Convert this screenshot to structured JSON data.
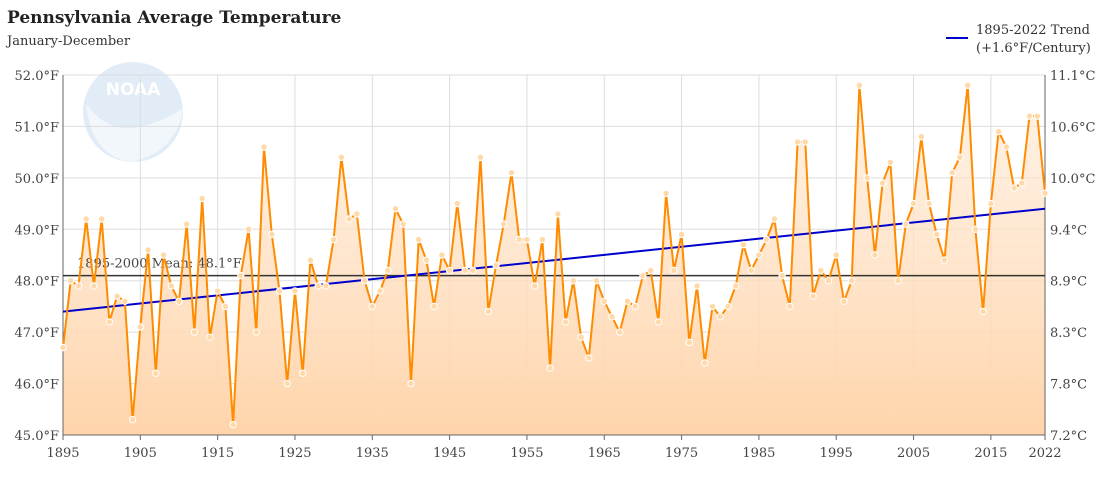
{
  "header": {
    "title": "Pennsylvania Average Temperature",
    "subtitle": "January-December"
  },
  "legend": {
    "line1": "1895-2022 Trend",
    "line2": "(+1.6°F/Century)",
    "color": "#0000cc"
  },
  "mean_label": "1895-2000 Mean: 48.1°F",
  "watermark": "NOAA",
  "colors": {
    "series": "#ff8c00",
    "fill_top": "#ffe8d2",
    "fill_bottom": "#ffd4aa",
    "trend": "#0000cc",
    "mean": "#333333",
    "grid": "#dddddd"
  },
  "chart_data": {
    "type": "line",
    "title": "Pennsylvania Average Temperature",
    "subtitle": "January-December",
    "xlim": [
      1895,
      2022
    ],
    "ylim": [
      45.0,
      52.0
    ],
    "y_ticks": [
      "45.0°F",
      "46.0°F",
      "47.0°F",
      "48.0°F",
      "49.0°F",
      "50.0°F",
      "51.0°F",
      "52.0°F"
    ],
    "y_tick_values": [
      45,
      46,
      47,
      48,
      49,
      50,
      51,
      52
    ],
    "y2_ticks": [
      "7.2°C",
      "7.8°C",
      "8.3°C",
      "8.9°C",
      "9.4°C",
      "10.0°C",
      "10.6°C",
      "11.1°C"
    ],
    "x_ticks": [
      "1895",
      "1905",
      "1915",
      "1925",
      "1935",
      "1945",
      "1955",
      "1965",
      "1975",
      "1985",
      "1995",
      "2005",
      "2015",
      "2022"
    ],
    "x_tick_values": [
      1895,
      1905,
      1915,
      1925,
      1935,
      1945,
      1955,
      1965,
      1975,
      1985,
      1995,
      2005,
      2015,
      2022
    ],
    "grid": true,
    "legend_position": "top-right",
    "mean": 48.1,
    "trend": {
      "start": [
        1895,
        47.4
      ],
      "end": [
        2022,
        49.4
      ]
    },
    "series": [
      {
        "years": [
          1895,
          1896,
          1897,
          1898,
          1899,
          1900,
          1901,
          1902,
          1903,
          1904,
          1905,
          1906,
          1907,
          1908,
          1909,
          1910,
          1911,
          1912,
          1913,
          1914,
          1915,
          1916,
          1917,
          1918,
          1919,
          1920,
          1921,
          1922,
          1923,
          1924,
          1925,
          1926,
          1927,
          1928,
          1929,
          1930,
          1931,
          1932,
          1933,
          1934,
          1935,
          1936,
          1937,
          1938,
          1939,
          1940,
          1941,
          1942,
          1943,
          1944,
          1945,
          1946,
          1947,
          1948,
          1949,
          1950,
          1951,
          1952,
          1953,
          1954,
          1955,
          1956,
          1957,
          1958,
          1959,
          1960,
          1961,
          1962,
          1963,
          1964,
          1965,
          1966,
          1967,
          1968,
          1969,
          1970,
          1971,
          1972,
          1973,
          1974,
          1975,
          1976,
          1977,
          1978,
          1979,
          1980,
          1981,
          1982,
          1983,
          1984,
          1985,
          1986,
          1987,
          1988,
          1989,
          1990,
          1991,
          1992,
          1993,
          1994,
          1995,
          1996,
          1997,
          1998,
          1999,
          2000,
          2001,
          2002,
          2003,
          2004,
          2005,
          2006,
          2007,
          2008,
          2009,
          2010,
          2011,
          2012,
          2013,
          2014,
          2015,
          2016,
          2017,
          2018,
          2019,
          2020,
          2021,
          2022
        ],
        "values": [
          46.7,
          48.0,
          47.9,
          49.2,
          47.9,
          49.2,
          47.2,
          47.7,
          47.6,
          45.3,
          47.1,
          48.6,
          46.2,
          48.5,
          47.9,
          47.6,
          49.1,
          47.0,
          49.6,
          46.9,
          47.8,
          47.5,
          45.2,
          48.1,
          49.0,
          47.0,
          50.6,
          48.9,
          47.8,
          46.0,
          47.8,
          46.2,
          48.4,
          47.9,
          47.9,
          48.8,
          50.4,
          49.2,
          49.3,
          48.0,
          47.5,
          47.8,
          48.2,
          49.4,
          49.1,
          46.0,
          48.8,
          48.4,
          47.5,
          48.5,
          48.2,
          49.5,
          48.2,
          48.2,
          50.4,
          47.4,
          48.3,
          49.1,
          50.1,
          48.8,
          48.8,
          47.9,
          48.8,
          46.3,
          49.3,
          47.2,
          48.0,
          46.9,
          46.5,
          48.0,
          47.6,
          47.3,
          47.0,
          47.6,
          47.5,
          48.1,
          48.2,
          47.2,
          49.7,
          48.2,
          48.9,
          46.8,
          47.9,
          46.4,
          47.5,
          47.3,
          47.5,
          47.9,
          48.7,
          48.2,
          48.5,
          48.8,
          49.2,
          48.1,
          47.5,
          50.7,
          50.7,
          47.7,
          48.2,
          48.0,
          48.5,
          47.6,
          48.0,
          51.8,
          50.0,
          48.5,
          49.9,
          50.3,
          48.0,
          49.1,
          49.5,
          50.8,
          49.5,
          48.9,
          48.4,
          50.1,
          50.4,
          51.8,
          49.0,
          47.4,
          49.5,
          50.9,
          50.6,
          49.8,
          49.9,
          51.2,
          51.2,
          49.7
        ]
      }
    ]
  }
}
